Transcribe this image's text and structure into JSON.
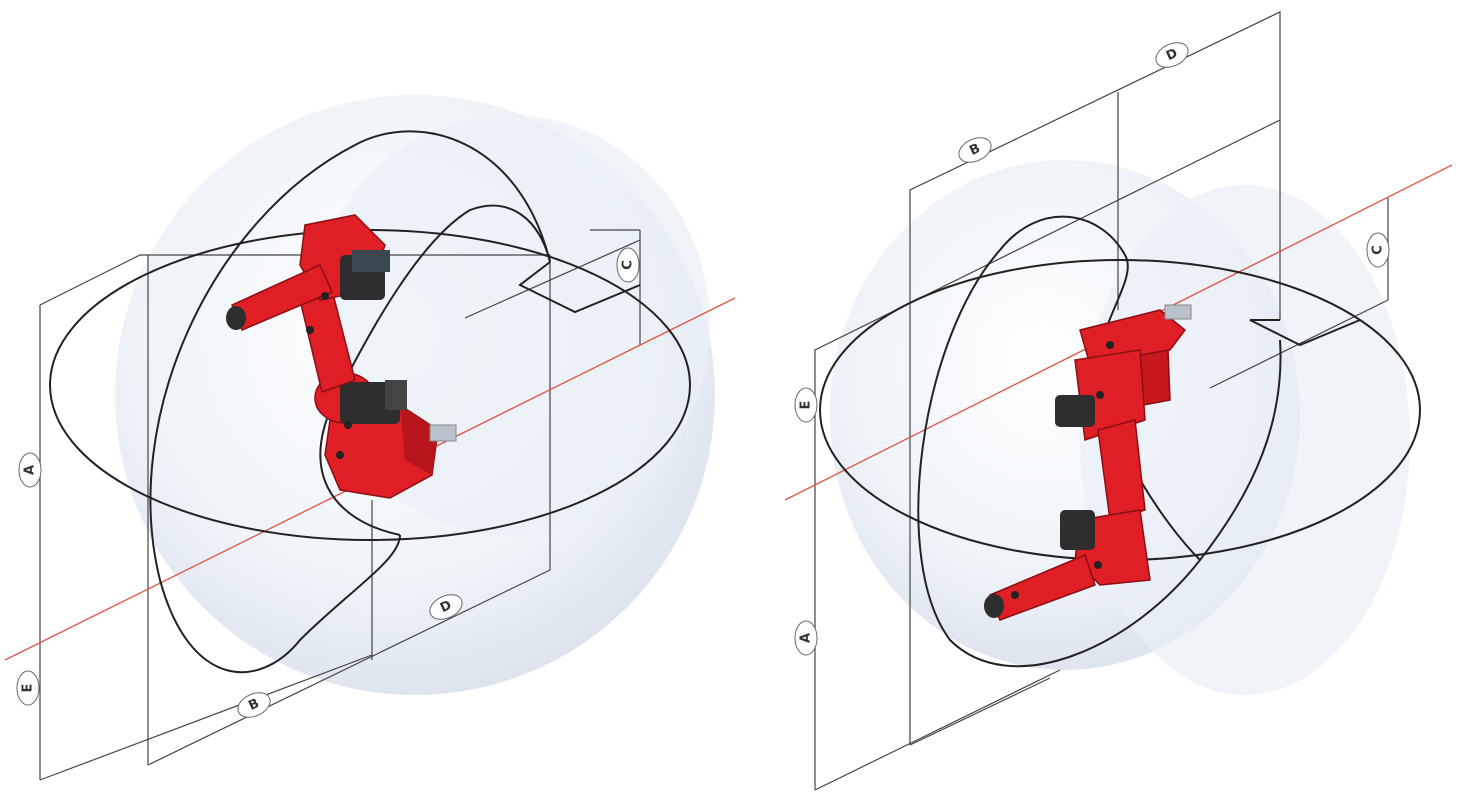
{
  "diagrams": [
    {
      "view": "left",
      "labels": {
        "A": "A",
        "B": "B",
        "C": "C",
        "D": "D",
        "E": "E"
      }
    },
    {
      "view": "right",
      "labels": {
        "A": "A",
        "B": "B",
        "C": "C",
        "D": "D",
        "E": "E"
      }
    }
  ],
  "colors": {
    "robot": "#e01e25",
    "robot_dark": "#a0121a",
    "motor": "#333333",
    "axis_line": "#e05a4a",
    "envelope": "#222222",
    "sphere": "#dfe7f0"
  }
}
